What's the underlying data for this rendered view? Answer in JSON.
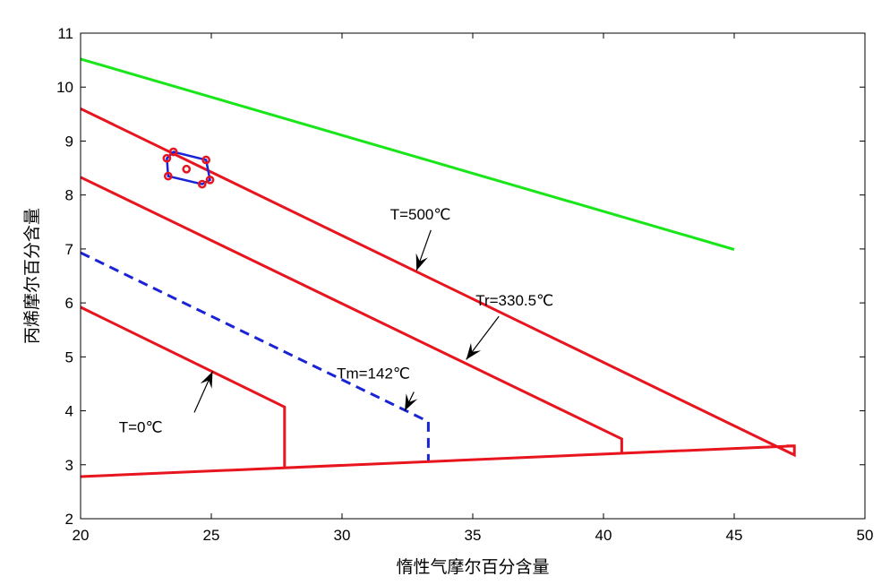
{
  "chart_data": {
    "type": "line",
    "xlabel": "惰性气摩尔百分含量",
    "ylabel": "丙烯摩尔百分含量",
    "xlim": [
      20,
      50
    ],
    "ylim": [
      2,
      11
    ],
    "xticks": [
      "20",
      "25",
      "30",
      "35",
      "40",
      "45",
      "50"
    ],
    "yticks": [
      "2",
      "3",
      "4",
      "5",
      "6",
      "7",
      "8",
      "9",
      "10",
      "11"
    ],
    "grid": false,
    "colors": {
      "red": "#e8141e",
      "green": "#19e619",
      "blue": "#1a23d6"
    },
    "series": [
      {
        "color": "green",
        "style": "solid",
        "x": [
          20,
          45
        ],
        "y": [
          10.52,
          6.99
        ]
      },
      {
        "color": "red",
        "style": "solid",
        "x": [
          20,
          47.3,
          47.3,
          47.0
        ],
        "y": [
          9.6,
          3.18,
          3.35,
          3.35
        ]
      },
      {
        "color": "red",
        "style": "solid",
        "x": [
          20,
          40.7,
          40.7
        ],
        "y": [
          8.33,
          3.48,
          3.2
        ]
      },
      {
        "color": "blue",
        "style": "dashed",
        "x": [
          20,
          33.3,
          33.3
        ],
        "y": [
          6.93,
          3.8,
          3.07
        ]
      },
      {
        "color": "red",
        "style": "solid",
        "x": [
          20,
          27.8,
          27.8
        ],
        "y": [
          5.92,
          4.07,
          2.93
        ]
      },
      {
        "color": "red",
        "style": "solid",
        "x": [
          20,
          47.3
        ],
        "y": [
          2.78,
          3.35
        ]
      },
      {
        "color": "blue",
        "style": "solid",
        "closed": true,
        "x": [
          23.3,
          23.55,
          24.8,
          24.95,
          24.65,
          23.35
        ],
        "y": [
          8.68,
          8.8,
          8.65,
          8.28,
          8.2,
          8.35
        ]
      }
    ],
    "points": {
      "color": "red",
      "x": [
        23.3,
        23.55,
        24.8,
        24.95,
        24.65,
        23.35,
        24.05
      ],
      "y": [
        8.68,
        8.8,
        8.65,
        8.28,
        8.2,
        8.35,
        8.48
      ]
    },
    "annotations": [
      {
        "text": "T=500℃",
        "text_x": 33.0,
        "text_y": 7.55,
        "arrow_from": [
          33.4,
          7.35
        ],
        "arrow_to": [
          32.85,
          6.6
        ]
      },
      {
        "text": "Tr=330.5℃",
        "text_x": 36.6,
        "text_y": 5.95,
        "arrow_from": [
          36.0,
          5.75
        ],
        "arrow_to": [
          34.75,
          4.95
        ]
      },
      {
        "text": "Tm=142℃",
        "text_x": 31.2,
        "text_y": 4.6,
        "arrow_from": [
          32.75,
          4.35
        ],
        "arrow_to": [
          32.4,
          4.0
        ]
      },
      {
        "text": "T=0℃",
        "text_x": 22.3,
        "text_y": 3.6,
        "arrow_from": [
          24.35,
          3.97
        ],
        "arrow_to": [
          25.05,
          4.73
        ]
      }
    ]
  }
}
